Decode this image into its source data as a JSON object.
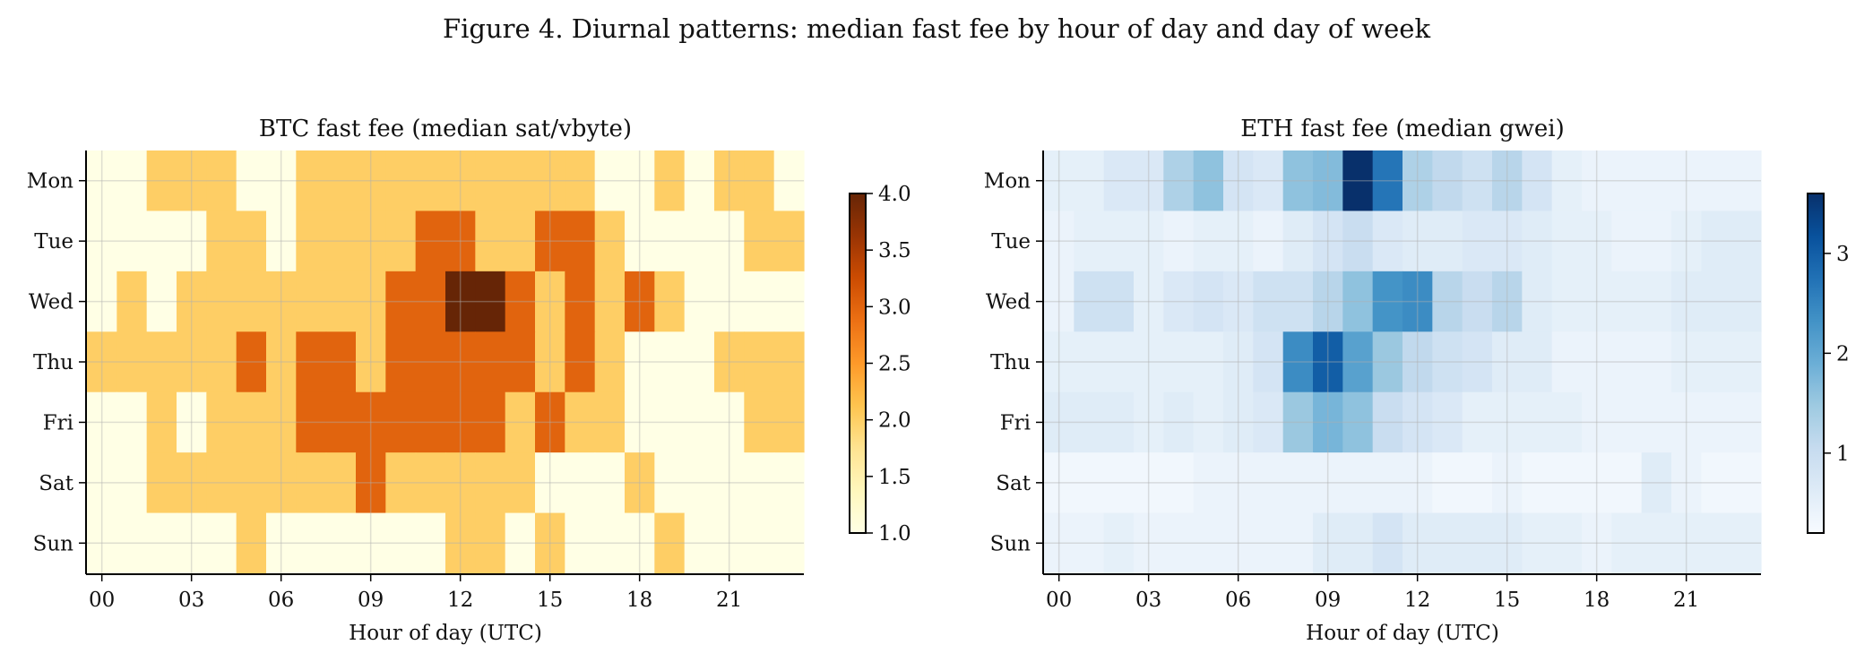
{
  "figure": {
    "title": "Figure 4. Diurnal patterns: median fast fee by hour of day and day of week"
  },
  "chart_data": [
    {
      "type": "heatmap",
      "title": "BTC fast fee (median sat/vbyte)",
      "xlabel": "Hour of day (UTC)",
      "ylabel": "",
      "x": [
        0,
        1,
        2,
        3,
        4,
        5,
        6,
        7,
        8,
        9,
        10,
        11,
        12,
        13,
        14,
        15,
        16,
        17,
        18,
        19,
        20,
        21,
        22,
        23
      ],
      "x_tick_labels": [
        "00",
        "03",
        "06",
        "09",
        "12",
        "15",
        "18",
        "21"
      ],
      "y": [
        "Mon",
        "Tue",
        "Wed",
        "Thu",
        "Fri",
        "Sat",
        "Sun"
      ],
      "colormap": "YlOrBr",
      "colorbar": {
        "range": [
          1.0,
          4.0
        ],
        "ticks": [
          "1.0",
          "1.5",
          "2.0",
          "2.5",
          "3.0",
          "3.5",
          "4.0"
        ]
      },
      "grid": true,
      "values": [
        [
          1,
          1,
          2,
          2,
          2,
          1,
          1,
          2,
          2,
          2,
          2,
          2,
          2,
          2,
          2,
          2,
          2,
          1,
          1,
          2,
          1,
          2,
          2,
          1
        ],
        [
          1,
          1,
          1,
          1,
          2,
          2,
          1,
          2,
          2,
          2,
          2,
          3,
          3,
          2,
          2,
          3,
          3,
          2,
          1,
          1,
          1,
          1,
          2,
          2
        ],
        [
          1,
          2,
          1,
          2,
          2,
          2,
          2,
          2,
          2,
          2,
          3,
          3,
          4,
          4,
          3,
          2,
          3,
          2,
          3,
          2,
          1,
          1,
          1,
          1
        ],
        [
          2,
          2,
          2,
          2,
          2,
          3,
          2,
          3,
          3,
          2,
          3,
          3,
          3,
          3,
          3,
          2,
          3,
          2,
          1,
          1,
          1,
          2,
          2,
          2
        ],
        [
          1,
          1,
          2,
          1,
          2,
          2,
          2,
          3,
          3,
          3,
          3,
          3,
          3,
          3,
          2,
          3,
          2,
          2,
          1,
          1,
          1,
          1,
          2,
          2
        ],
        [
          1,
          1,
          2,
          2,
          2,
          2,
          2,
          2,
          2,
          3,
          2,
          2,
          2,
          2,
          2,
          1,
          1,
          1,
          2,
          1,
          1,
          1,
          1,
          1
        ],
        [
          1,
          1,
          1,
          1,
          1,
          2,
          1,
          1,
          1,
          1,
          1,
          1,
          2,
          2,
          1,
          2,
          1,
          1,
          1,
          2,
          1,
          1,
          1,
          1
        ]
      ]
    },
    {
      "type": "heatmap",
      "title": "ETH fast fee (median gwei)",
      "xlabel": "Hour of day (UTC)",
      "ylabel": "",
      "x": [
        0,
        1,
        2,
        3,
        4,
        5,
        6,
        7,
        8,
        9,
        10,
        11,
        12,
        13,
        14,
        15,
        16,
        17,
        18,
        19,
        20,
        21,
        22,
        23
      ],
      "x_tick_labels": [
        "00",
        "03",
        "06",
        "09",
        "12",
        "15",
        "18",
        "21"
      ],
      "y": [
        "Mon",
        "Tue",
        "Wed",
        "Thu",
        "Fri",
        "Sat",
        "Sun"
      ],
      "colormap": "Blues",
      "colorbar": {
        "range": [
          0.2,
          3.6
        ],
        "ticks": [
          "1",
          "2",
          "3"
        ]
      },
      "grid": true,
      "values": [
        [
          0.5,
          0.5,
          0.7,
          0.7,
          1.3,
          1.6,
          0.8,
          0.7,
          1.6,
          1.7,
          3.6,
          2.7,
          1.3,
          1.1,
          0.9,
          1.2,
          0.8,
          0.5,
          0.4,
          0.4,
          0.4,
          0.4,
          0.4,
          0.4
        ],
        [
          0.4,
          0.5,
          0.5,
          0.5,
          0.4,
          0.5,
          0.5,
          0.4,
          0.6,
          0.8,
          1.0,
          0.7,
          0.6,
          0.6,
          0.7,
          0.7,
          0.6,
          0.5,
          0.5,
          0.4,
          0.4,
          0.5,
          0.6,
          0.6
        ],
        [
          0.4,
          0.9,
          0.9,
          0.5,
          0.7,
          0.8,
          0.7,
          0.9,
          0.9,
          1.2,
          1.6,
          2.3,
          2.4,
          1.2,
          1.0,
          1.2,
          0.6,
          0.5,
          0.5,
          0.5,
          0.5,
          0.6,
          0.6,
          0.6
        ],
        [
          0.5,
          0.5,
          0.5,
          0.5,
          0.5,
          0.5,
          0.6,
          0.8,
          2.4,
          3.0,
          2.1,
          1.5,
          1.1,
          0.9,
          0.8,
          0.6,
          0.6,
          0.4,
          0.4,
          0.4,
          0.4,
          0.5,
          0.5,
          0.5
        ],
        [
          0.6,
          0.6,
          0.6,
          0.5,
          0.6,
          0.5,
          0.6,
          0.7,
          1.5,
          1.8,
          1.6,
          1.0,
          0.8,
          0.7,
          0.5,
          0.5,
          0.5,
          0.5,
          0.4,
          0.4,
          0.4,
          0.4,
          0.4,
          0.4
        ],
        [
          0.3,
          0.3,
          0.3,
          0.3,
          0.3,
          0.4,
          0.4,
          0.4,
          0.4,
          0.4,
          0.4,
          0.4,
          0.4,
          0.3,
          0.3,
          0.4,
          0.3,
          0.3,
          0.3,
          0.3,
          0.6,
          0.4,
          0.3,
          0.3
        ],
        [
          0.4,
          0.4,
          0.5,
          0.4,
          0.4,
          0.4,
          0.4,
          0.4,
          0.4,
          0.6,
          0.6,
          0.8,
          0.6,
          0.6,
          0.6,
          0.6,
          0.5,
          0.5,
          0.4,
          0.5,
          0.5,
          0.5,
          0.5,
          0.5
        ]
      ]
    }
  ]
}
